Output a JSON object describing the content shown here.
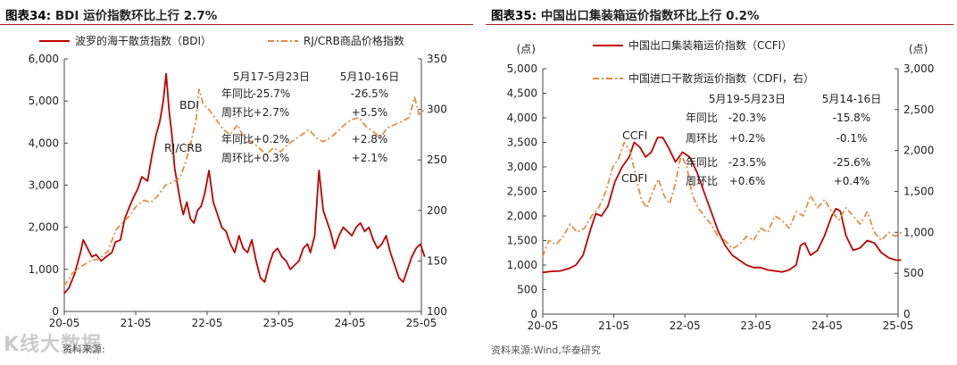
{
  "left": {
    "title_num": "图表34:",
    "title_text": "BDI 运价指数环比上行 2.7%",
    "source": "资料来源:",
    "watermark": "K线大数据",
    "chart_data": {
      "type": "line",
      "x_ticks": [
        "20-05",
        "21-05",
        "22-05",
        "23-05",
        "24-05",
        "25-05"
      ],
      "y_left": {
        "ticks": [
          "0",
          "1,000",
          "2,000",
          "3,000",
          "4,000",
          "5,000",
          "6,000"
        ],
        "lim": [
          0,
          6000
        ]
      },
      "y_right": {
        "ticks": [
          "100",
          "150",
          "200",
          "250",
          "300",
          "350"
        ],
        "lim": [
          100,
          350
        ]
      },
      "series": [
        {
          "name": "波罗的海干散货指数（BDI）",
          "axis": "left",
          "color": "#c00000",
          "style": "solid",
          "x": [
            2020.33,
            2020.4,
            2020.48,
            2020.56,
            2020.6,
            2020.66,
            2020.72,
            2020.78,
            2020.85,
            2020.92,
            2021.0,
            2021.05,
            2021.12,
            2021.18,
            2021.25,
            2021.3,
            2021.36,
            2021.42,
            2021.5,
            2021.56,
            2021.62,
            2021.67,
            2021.72,
            2021.76,
            2021.8,
            2021.84,
            2021.88,
            2021.92,
            2021.96,
            2022.0,
            2022.05,
            2022.1,
            2022.15,
            2022.2,
            2022.25,
            2022.3,
            2022.36,
            2022.42,
            2022.48,
            2022.54,
            2022.6,
            2022.66,
            2022.72,
            2022.78,
            2022.84,
            2022.9,
            2022.96,
            2023.02,
            2023.08,
            2023.14,
            2023.2,
            2023.26,
            2023.32,
            2023.38,
            2023.44,
            2023.5,
            2023.56,
            2023.62,
            2023.68,
            2023.74,
            2023.78,
            2023.84,
            2023.9,
            2023.96,
            2024.0,
            2024.06,
            2024.12,
            2024.18,
            2024.24,
            2024.3,
            2024.36,
            2024.42,
            2024.48,
            2024.54,
            2024.6,
            2024.66,
            2024.72,
            2024.78,
            2024.84,
            2024.9,
            2024.96,
            2025.02,
            2025.08,
            2025.14,
            2025.2,
            2025.26,
            2025.32,
            2025.38
          ],
          "y": [
            420,
            560,
            900,
            1400,
            1700,
            1500,
            1300,
            1350,
            1200,
            1300,
            1400,
            1650,
            1700,
            2200,
            2500,
            2700,
            2900,
            3200,
            3100,
            3700,
            4200,
            4500,
            5000,
            5650,
            4800,
            4200,
            3400,
            3000,
            2600,
            2300,
            2600,
            2200,
            2100,
            2400,
            2500,
            2800,
            3350,
            2600,
            2300,
            2000,
            1900,
            1600,
            1400,
            1800,
            1500,
            1400,
            1700,
            1200,
            800,
            700,
            1100,
            1400,
            1500,
            1300,
            1200,
            1000,
            1100,
            1200,
            1500,
            1600,
            1400,
            1800,
            3350,
            2400,
            2200,
            1900,
            1500,
            1800,
            2000,
            1900,
            1800,
            2000,
            2100,
            1900,
            2000,
            1700,
            1500,
            1600,
            1800,
            1400,
            1100,
            800,
            700,
            1000,
            1300,
            1500,
            1600,
            1300
          ]
        },
        {
          "name": "RJ/CRB商品价格指数",
          "axis": "right",
          "color": "#e8883a",
          "style": "dashdot",
          "x": [
            2020.33,
            2020.45,
            2020.58,
            2020.7,
            2020.82,
            2020.95,
            2021.05,
            2021.15,
            2021.25,
            2021.35,
            2021.45,
            2021.55,
            2021.65,
            2021.75,
            2021.85,
            2021.95,
            2022.02,
            2022.1,
            2022.18,
            2022.22,
            2022.28,
            2022.36,
            2022.46,
            2022.56,
            2022.66,
            2022.76,
            2022.86,
            2022.96,
            2023.06,
            2023.16,
            2023.26,
            2023.36,
            2023.46,
            2023.56,
            2023.66,
            2023.76,
            2023.86,
            2023.96,
            2024.06,
            2024.16,
            2024.26,
            2024.36,
            2024.46,
            2024.56,
            2024.66,
            2024.76,
            2024.86,
            2024.96,
            2025.06,
            2025.16,
            2025.24,
            2025.3,
            2025.38
          ],
          "y": [
            125,
            138,
            145,
            150,
            152,
            160,
            180,
            188,
            195,
            205,
            210,
            208,
            215,
            225,
            228,
            232,
            245,
            265,
            290,
            320,
            305,
            300,
            290,
            280,
            275,
            285,
            270,
            268,
            262,
            255,
            262,
            258,
            265,
            270,
            275,
            280,
            272,
            268,
            272,
            278,
            285,
            290,
            292,
            283,
            278,
            272,
            282,
            285,
            288,
            292,
            312,
            295,
            300
          ]
        }
      ],
      "annotations": {
        "header_1": "5月17-5月23日",
        "header_2": "5月10-16日",
        "group_1_label": "BDI",
        "group_2_label": "RJ/CRB",
        "rows": [
          {
            "label": "年同比",
            "v1": "-25.7%",
            "v2": "-26.5%"
          },
          {
            "label": "周环比",
            "v1": "+2.7%",
            "v2": "+5.5%"
          },
          {
            "label": "年同比",
            "v1": "+0.2%",
            "v2": "+2.8%"
          },
          {
            "label": "周环比",
            "v1": "+0.3%",
            "v2": "+2.1%"
          }
        ]
      }
    }
  },
  "right": {
    "title_num": "图表35:",
    "title_text": "中国出口集装箱运价指数环比上行 0.2%",
    "source": "资料来源:Wind,华泰研究",
    "chart_data": {
      "type": "line",
      "x_ticks": [
        "20-05",
        "21-05",
        "22-05",
        "23-05",
        "24-05",
        "25-05"
      ],
      "y_left": {
        "unit": "(点)",
        "ticks": [
          "0",
          "500",
          "1,000",
          "1,500",
          "2,000",
          "2,500",
          "3,000",
          "3,500",
          "4,000",
          "4,500",
          "5,000"
        ],
        "lim": [
          0,
          5000
        ]
      },
      "y_right": {
        "unit": "(点)",
        "ticks": [
          "0",
          "500",
          "1,000",
          "1,500",
          "2,000",
          "2,500",
          "3,000"
        ],
        "lim": [
          0,
          3000
        ]
      },
      "series": [
        {
          "name": "中国出口集装箱运价指数（CCFI）",
          "axis": "left",
          "color": "#c00000",
          "style": "solid",
          "x": [
            2020.33,
            2020.45,
            2020.58,
            2020.7,
            2020.8,
            2020.9,
            2021.0,
            2021.08,
            2021.16,
            2021.25,
            2021.35,
            2021.45,
            2021.55,
            2021.62,
            2021.7,
            2021.78,
            2021.86,
            2021.95,
            2022.02,
            2022.1,
            2022.2,
            2022.3,
            2022.4,
            2022.5,
            2022.6,
            2022.7,
            2022.8,
            2022.9,
            2023.0,
            2023.1,
            2023.2,
            2023.3,
            2023.4,
            2023.5,
            2023.6,
            2023.7,
            2023.8,
            2023.9,
            2023.96,
            2024.02,
            2024.1,
            2024.2,
            2024.3,
            2024.4,
            2024.46,
            2024.52,
            2024.6,
            2024.7,
            2024.8,
            2024.9,
            2025.0,
            2025.1,
            2025.2,
            2025.3,
            2025.38
          ],
          "y": [
            850,
            870,
            880,
            930,
            1000,
            1200,
            1700,
            2050,
            2000,
            2200,
            2700,
            3000,
            3200,
            3500,
            3400,
            3200,
            3300,
            3600,
            3600,
            3400,
            3100,
            3300,
            3200,
            2900,
            2500,
            2100,
            1700,
            1400,
            1200,
            1100,
            1000,
            950,
            950,
            900,
            880,
            860,
            900,
            1000,
            1400,
            1450,
            1200,
            1300,
            1600,
            2000,
            2150,
            2100,
            1600,
            1300,
            1350,
            1500,
            1450,
            1250,
            1150,
            1100,
            1100
          ]
        },
        {
          "name": "中国进口干散货运价指数（CDFI，右）",
          "axis": "right",
          "color": "#e8883a",
          "style": "dashdot",
          "x": [
            2020.33,
            2020.42,
            2020.52,
            2020.62,
            2020.72,
            2020.82,
            2020.92,
            2021.02,
            2021.12,
            2021.22,
            2021.32,
            2021.4,
            2021.48,
            2021.56,
            2021.64,
            2021.72,
            2021.8,
            2021.88,
            2021.96,
            2022.04,
            2022.12,
            2022.2,
            2022.28,
            2022.36,
            2022.44,
            2022.52,
            2022.6,
            2022.7,
            2022.8,
            2022.9,
            2023.0,
            2023.1,
            2023.2,
            2023.3,
            2023.4,
            2023.5,
            2023.6,
            2023.7,
            2023.8,
            2023.9,
            2024.0,
            2024.1,
            2024.2,
            2024.3,
            2024.4,
            2024.5,
            2024.6,
            2024.7,
            2024.8,
            2024.9,
            2025.0,
            2025.1,
            2025.2,
            2025.3,
            2025.38
          ],
          "y": [
            700,
            900,
            850,
            950,
            1100,
            1000,
            1050,
            1200,
            1300,
            1500,
            1800,
            1900,
            2100,
            2000,
            1700,
            1400,
            1300,
            1500,
            1650,
            1450,
            1350,
            1600,
            1950,
            1800,
            1450,
            1300,
            1200,
            1100,
            950,
            900,
            800,
            850,
            950,
            900,
            1050,
            1000,
            1200,
            1150,
            1050,
            1250,
            1200,
            1450,
            1300,
            1400,
            1250,
            1150,
            1300,
            1200,
            1100,
            1250,
            1000,
            900,
            1000,
            950,
            1000
          ]
        }
      ],
      "annotations": {
        "header_1": "5月19-5月23日",
        "header_2": "5月14-16日",
        "group_1_label": "CCFI",
        "group_2_label": "CDFI",
        "rows": [
          {
            "label": "年同比",
            "v1": "-20.3%",
            "v2": "-15.8%"
          },
          {
            "label": "周环比",
            "v1": "+0.2%",
            "v2": "-0.1%"
          },
          {
            "label": "年同比",
            "v1": "-23.5%",
            "v2": "-25.6%"
          },
          {
            "label": "周环比",
            "v1": "+0.6%",
            "v2": "+0.4%"
          }
        ]
      }
    }
  }
}
